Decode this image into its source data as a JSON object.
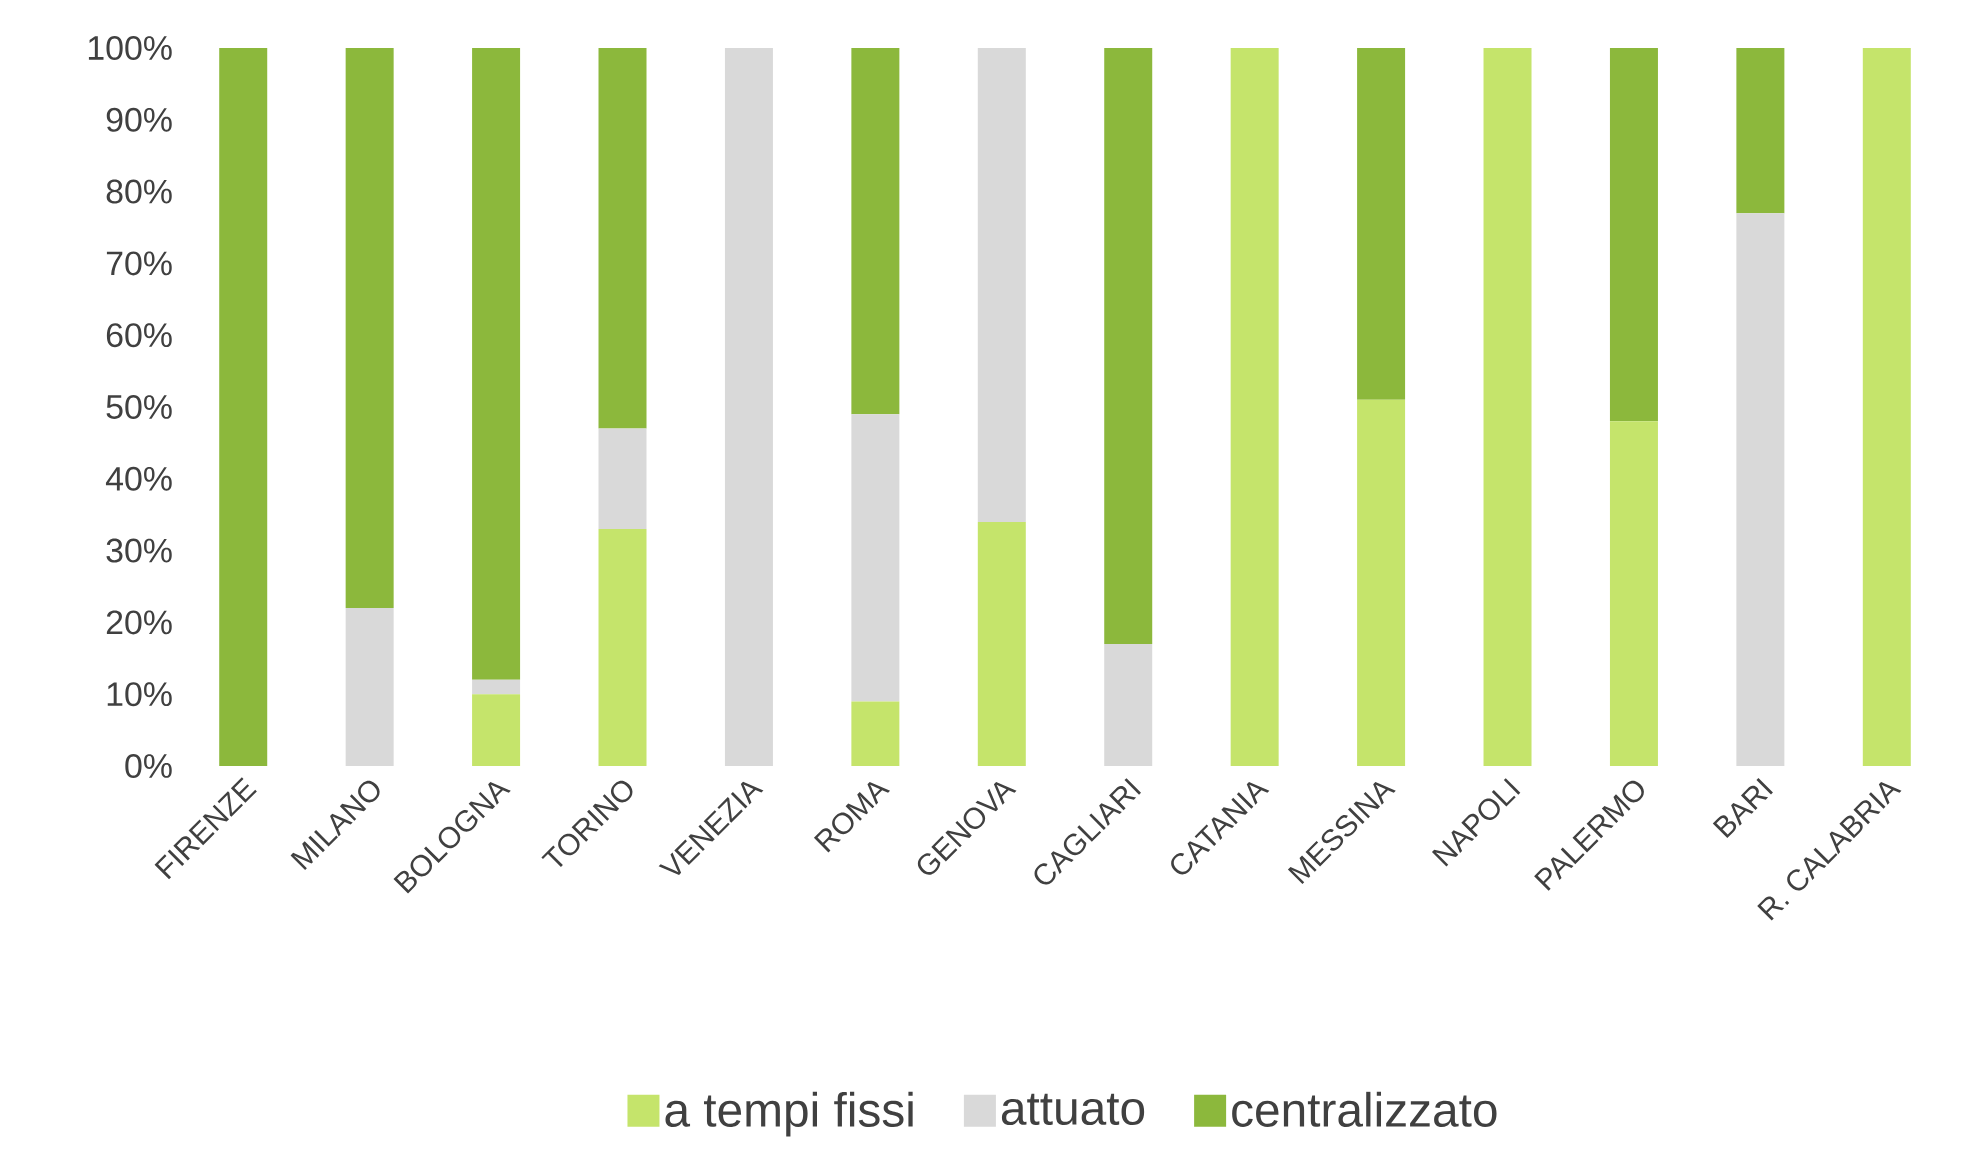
{
  "chart_data": {
    "type": "bar",
    "stacked": true,
    "categories": [
      "FIRENZE",
      "MILANO",
      "BOLOGNA",
      "TORINO",
      "VENEZIA",
      "ROMA",
      "GENOVA",
      "CAGLIARI",
      "CATANIA",
      "MESSINA",
      "NAPOLI",
      "PALERMO",
      "BARI",
      "R. CALABRIA"
    ],
    "series": [
      {
        "name": "a tempi fissi",
        "color": "#c5e46b",
        "values": [
          0,
          0,
          10,
          33,
          0,
          9,
          34,
          0,
          100,
          51,
          100,
          48,
          0,
          100
        ]
      },
      {
        "name": "attuato",
        "color": "#d9d9d9",
        "values": [
          0,
          22,
          2,
          14,
          100,
          40,
          66,
          17,
          0,
          0,
          0,
          0,
          77,
          0
        ]
      },
      {
        "name": "centralizzato",
        "color": "#8cb83c",
        "values": [
          100,
          78,
          88,
          53,
          0,
          51,
          0,
          83,
          0,
          49,
          0,
          52,
          23,
          0
        ]
      }
    ],
    "ylim": [
      0,
      100
    ],
    "yticks": [
      {
        "value": 0,
        "label": "0%"
      },
      {
        "value": 10,
        "label": "10%"
      },
      {
        "value": 20,
        "label": "20%"
      },
      {
        "value": 30,
        "label": "30%"
      },
      {
        "value": 40,
        "label": "40%"
      },
      {
        "value": 50,
        "label": "50%"
      },
      {
        "value": 60,
        "label": "60%"
      },
      {
        "value": 70,
        "label": "70%"
      },
      {
        "value": 80,
        "label": "80%"
      },
      {
        "value": 90,
        "label": "90%"
      },
      {
        "value": 100,
        "label": "100%"
      }
    ],
    "legend": "bottom",
    "grid": false
  }
}
